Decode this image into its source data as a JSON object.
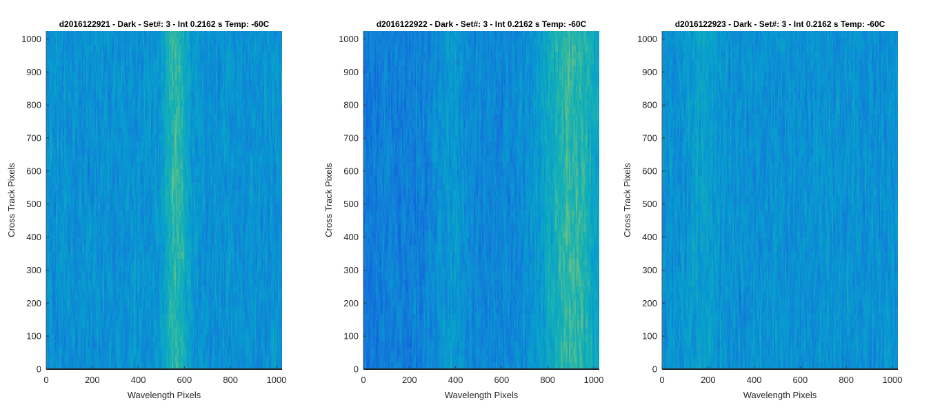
{
  "chart_data": [
    {
      "type": "heatmap",
      "title": "d2016122921 - Dark - Set#: 3 - Int 0.2162 s Temp: -60C",
      "xlabel": "Wavelength Pixels",
      "ylabel": "Cross Track Pixels",
      "xlim": [
        0,
        1024
      ],
      "ylim": [
        0,
        1024
      ],
      "xticks": [
        0,
        200,
        400,
        600,
        800,
        1000
      ],
      "yticks": [
        0,
        100,
        200,
        300,
        400,
        500,
        600,
        700,
        800,
        900,
        1000
      ],
      "colormap": "parula",
      "warm_bands": [
        {
          "x_center": 565,
          "width": 110,
          "strength": 0.45
        }
      ],
      "gradient": "none"
    },
    {
      "type": "heatmap",
      "title": "d2016122922 - Dark - Set#: 3 - Int 0.2162 s Temp: -60C",
      "xlabel": "Wavelength Pixels",
      "ylabel": "Cross Track Pixels",
      "xlim": [
        0,
        1024
      ],
      "ylim": [
        0,
        1024
      ],
      "xticks": [
        0,
        200,
        400,
        600,
        800,
        1000
      ],
      "yticks": [
        0,
        100,
        200,
        300,
        400,
        500,
        600,
        700,
        800,
        900,
        1000
      ],
      "colormap": "parula",
      "warm_bands": [
        {
          "x_center": 380,
          "width": 140,
          "strength": 0.2
        },
        {
          "x_center": 900,
          "width": 260,
          "strength": 0.5
        }
      ],
      "gradient": "left-dark"
    },
    {
      "type": "heatmap",
      "title": "d2016122923 - Dark - Set#: 3 - Int 0.2162 s Temp: -60C",
      "xlabel": "Wavelength Pixels",
      "ylabel": "Cross Track Pixels",
      "xlim": [
        0,
        1024
      ],
      "ylim": [
        0,
        1024
      ],
      "xticks": [
        0,
        200,
        400,
        600,
        800,
        1000
      ],
      "yticks": [
        0,
        100,
        200,
        300,
        400,
        500,
        600,
        700,
        800,
        900,
        1000
      ],
      "colormap": "parula",
      "warm_bands": [
        {
          "x_center": 180,
          "width": 120,
          "strength": 0.15
        }
      ],
      "gradient": "none"
    }
  ]
}
